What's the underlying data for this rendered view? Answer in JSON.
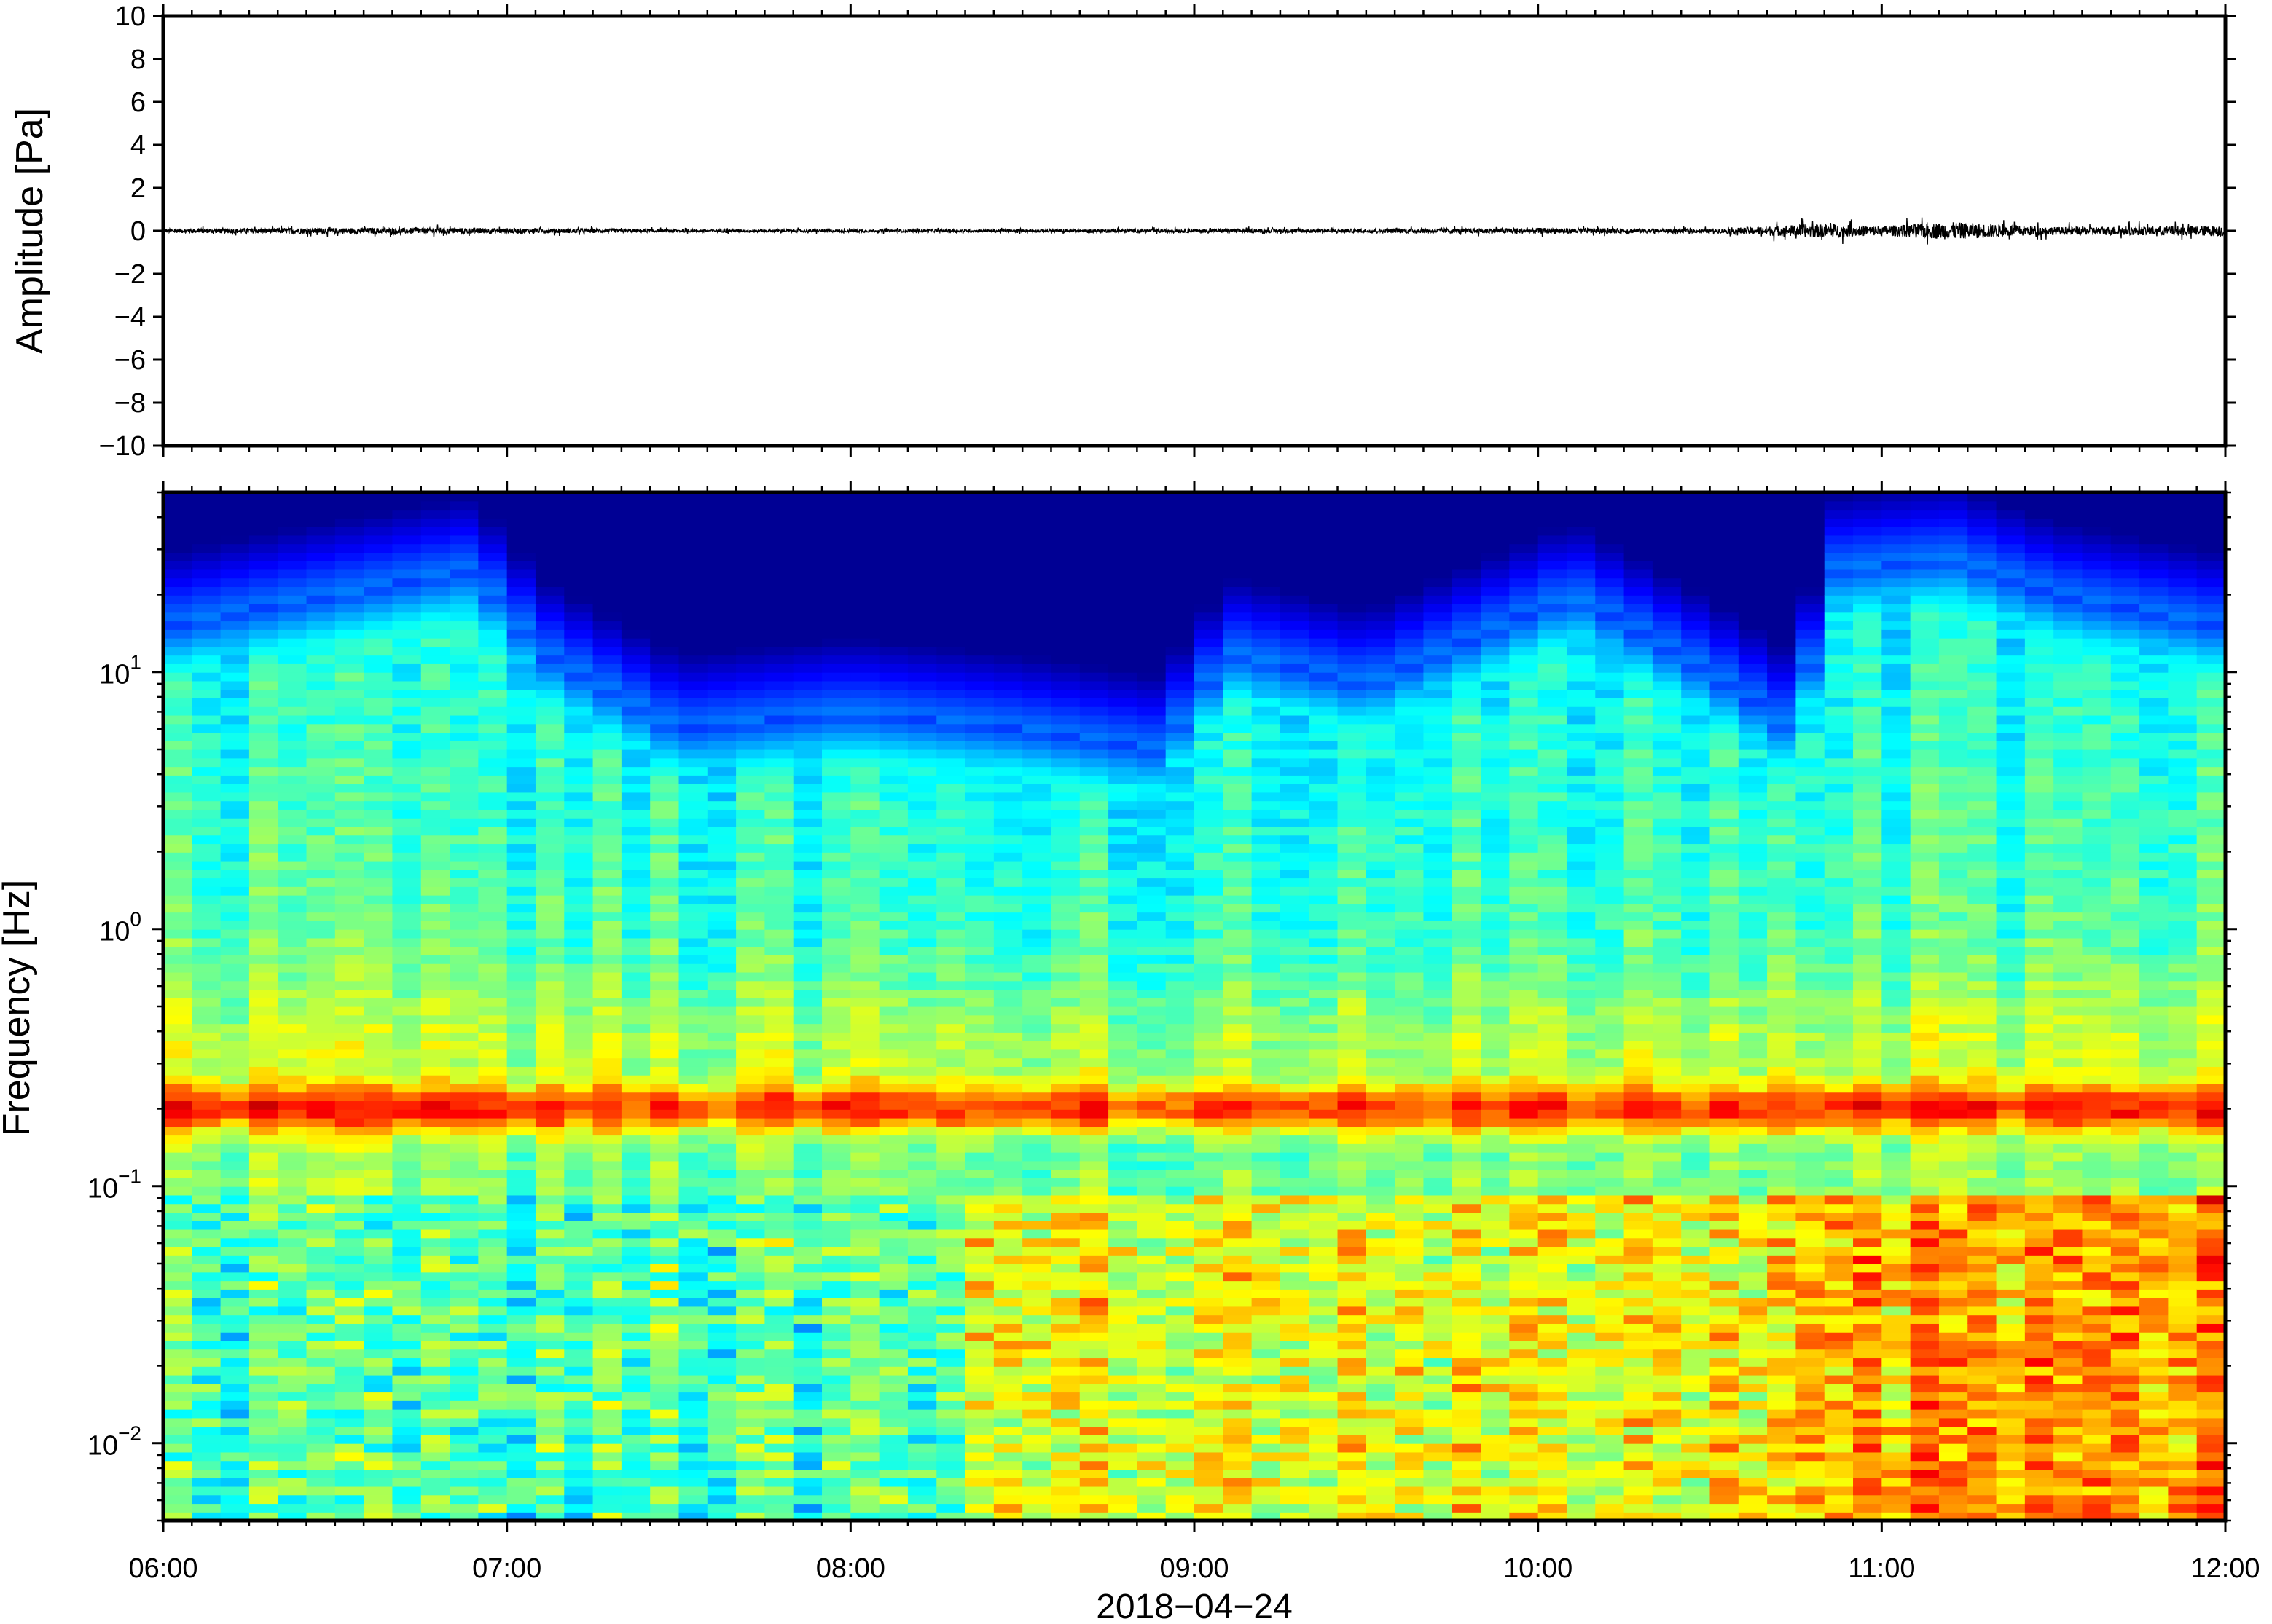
{
  "chart_data": [
    {
      "type": "line",
      "ylabel": "Amplitude [Pa]",
      "xlim": [
        "06:00",
        "12:00"
      ],
      "ylim": [
        -10,
        10
      ],
      "yticks": [
        10,
        8,
        6,
        4,
        2,
        0,
        -2,
        -4,
        -6,
        -8,
        -10
      ],
      "ytick_labels": [
        "10",
        "8",
        "6",
        "4",
        "2",
        "0",
        "−2",
        "−4",
        "−6",
        "−8",
        "−10"
      ],
      "series": [
        {
          "x_hours": [
            6.0,
            6.4,
            6.9,
            7.5,
            8.0,
            8.5,
            9.0,
            9.5,
            10.0,
            10.5,
            10.8,
            10.9,
            11.0,
            11.2,
            11.5,
            11.9,
            12.0
          ],
          "envelope_amplitude": [
            0.2,
            0.3,
            0.3,
            0.15,
            0.15,
            0.15,
            0.2,
            0.2,
            0.3,
            0.2,
            0.7,
            0.6,
            0.5,
            0.9,
            0.4,
            0.5,
            0.6
          ]
        }
      ],
      "grid": false
    },
    {
      "type": "heatmap",
      "ylabel": "Frequency [Hz]",
      "yscale": "log",
      "ylim_hz": [
        0.005,
        50
      ],
      "yticks_hz": [
        10,
        1,
        0.1,
        0.01
      ],
      "ytick_labels": [
        {
          "base": "10",
          "exp": "1"
        },
        {
          "base": "10",
          "exp": "0"
        },
        {
          "base": "10",
          "exp": "−1"
        },
        {
          "base": "10",
          "exp": "−2"
        }
      ],
      "colormap": "jet",
      "microseism_band_hz": 0.2,
      "upper_energy_limit_hz_by_hour": [
        [
          6.0,
          15
        ],
        [
          6.3,
          18
        ],
        [
          6.9,
          25
        ],
        [
          7.1,
          12
        ],
        [
          7.5,
          6
        ],
        [
          8.0,
          7
        ],
        [
          8.5,
          6
        ],
        [
          8.9,
          5
        ],
        [
          9.1,
          12
        ],
        [
          9.5,
          9
        ],
        [
          10.1,
          20
        ],
        [
          10.5,
          10
        ],
        [
          10.75,
          6
        ],
        [
          10.85,
          25
        ],
        [
          11.2,
          28
        ],
        [
          11.5,
          20
        ],
        [
          12.0,
          15
        ]
      ],
      "low_frequency_energy": [
        {
          "start": "06:00",
          "end": "08:20",
          "level": "moderate"
        },
        {
          "start": "08:20",
          "end": "10:45",
          "level": "elevated"
        },
        {
          "start": "10:45",
          "end": "12:00",
          "level": "high"
        }
      ]
    }
  ],
  "x_axis": {
    "tick_labels": [
      "06:00",
      "07:00",
      "08:00",
      "09:00",
      "10:00",
      "11:00",
      "12:00"
    ],
    "date_label": "2018−04−24"
  }
}
